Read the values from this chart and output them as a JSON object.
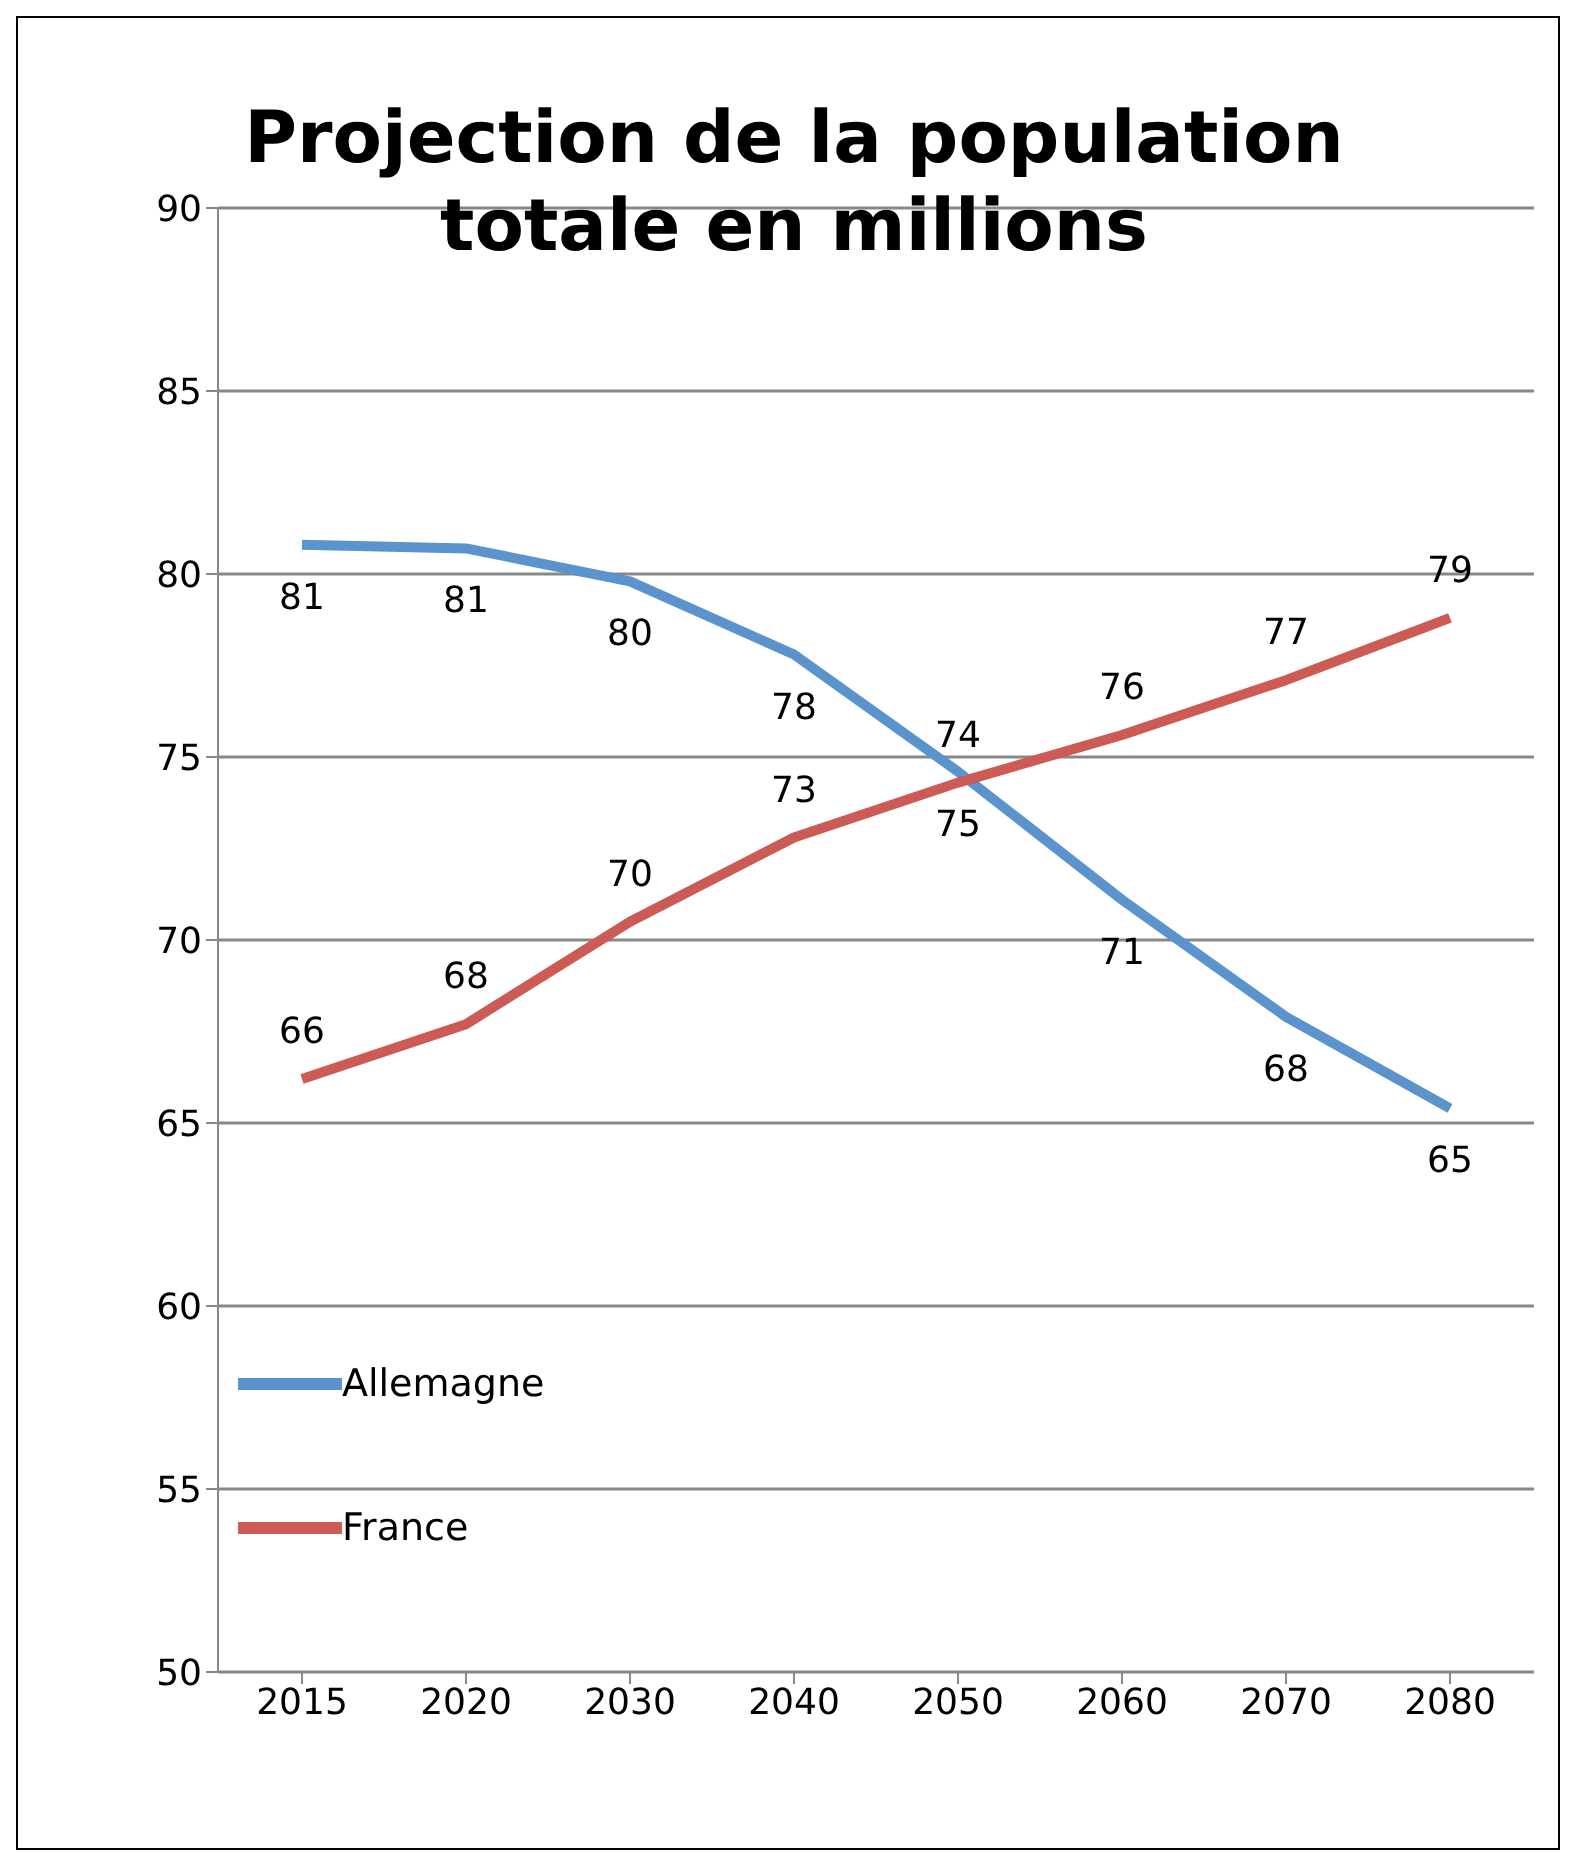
{
  "chart_data": {
    "type": "line",
    "title": "Projection de la population totale en millions",
    "categories": [
      "2015",
      "2020",
      "2030",
      "2040",
      "2050",
      "2060",
      "2070",
      "2080"
    ],
    "series": [
      {
        "name": "Allemagne",
        "color": "#5b93cc",
        "values": [
          80.8,
          80.7,
          79.8,
          77.8,
          74.6,
          71.1,
          67.9,
          65.4
        ],
        "value_labels": [
          "81",
          "81",
          "80",
          "78",
          "75",
          "71",
          "68",
          "65"
        ]
      },
      {
        "name": "France",
        "color": "#cc5a55",
        "values": [
          66.2,
          67.7,
          70.5,
          72.8,
          74.3,
          75.6,
          77.1,
          78.8
        ],
        "value_labels": [
          "66",
          "68",
          "70",
          "73",
          "74",
          "76",
          "77",
          "79"
        ]
      }
    ],
    "ylim": [
      50,
      90
    ],
    "yticks": [
      50,
      55,
      60,
      65,
      70,
      75,
      80,
      85,
      90
    ],
    "grid": "y",
    "legend": "bottom left",
    "marker": "none",
    "line_style": "solid"
  }
}
